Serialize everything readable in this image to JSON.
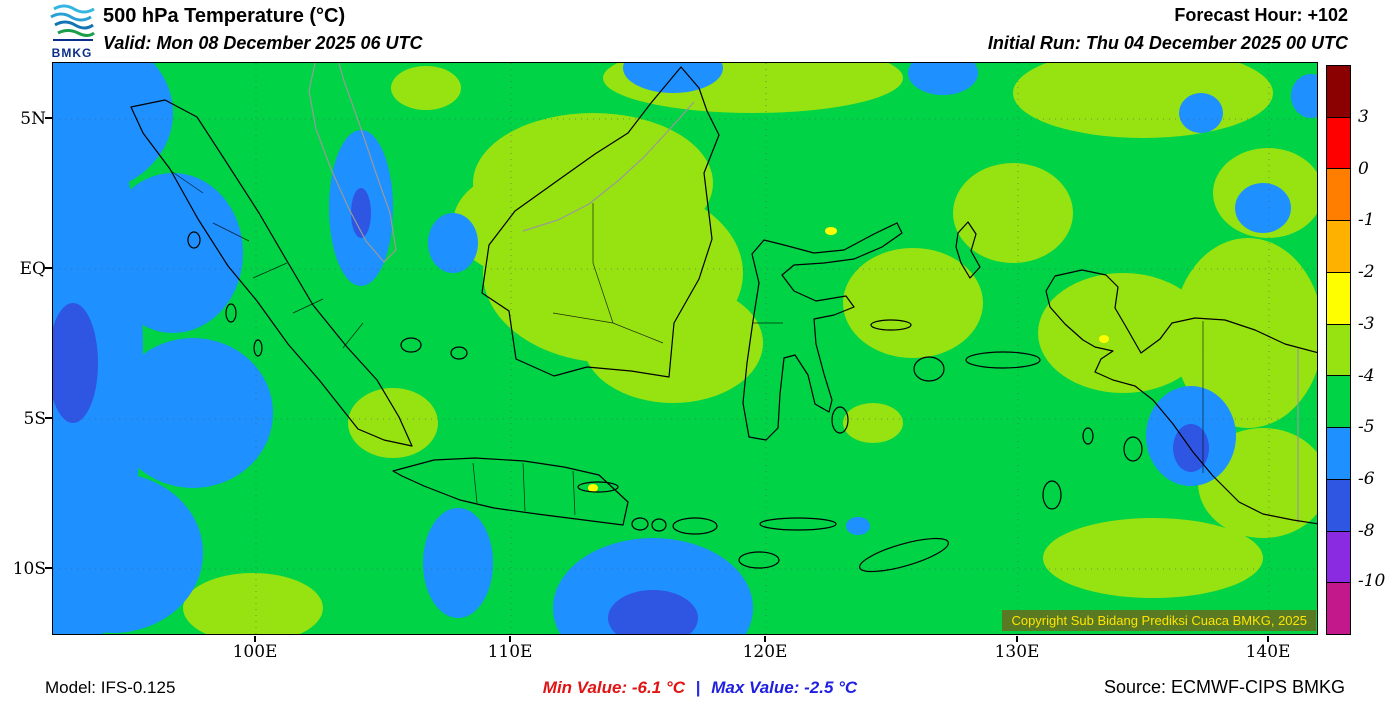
{
  "header": {
    "logo": "BMKG",
    "title": "500 hPa Temperature (°C)",
    "valid": "Valid: Mon 08 December 2025 06 UTC",
    "forecast_hour": "Forecast Hour: +102",
    "initial_run": "Initial Run: Thu 04 December 2025 00 UTC"
  },
  "axes": {
    "y_ticks": [
      "5N",
      "EQ",
      "5S",
      "10S"
    ],
    "x_ticks": [
      "100E",
      "110E",
      "120E",
      "130E",
      "140E"
    ]
  },
  "colorbar": {
    "labels": [
      "3",
      "0",
      "-1",
      "-2",
      "-3",
      "-4",
      "-5",
      "-6",
      "-8",
      "-10"
    ],
    "colors": [
      "#8b0000",
      "#fe0000",
      "#ff7e00",
      "#ffb100",
      "#fffe00",
      "#97e211",
      "#00d345",
      "#1e90ff",
      "#2f55e3",
      "#8a2be2",
      "#c2188c"
    ]
  },
  "map": {
    "copyright": "Copyright Sub Bidang Prediksi Cuaca BMKG, 2025",
    "base_color": "#00d345",
    "light_color": "#97e211",
    "cool_color": "#1e90ff",
    "deep_color": "#2f55e3",
    "warm_color": "#fffe00"
  },
  "footer": {
    "model": "Model: IFS-0.125",
    "min_value": "Min Value: -6.1 °C",
    "separator": "|",
    "max_value": "Max Value: -2.5 °C",
    "source": "Source: ECMWF-CIPS BMKG"
  }
}
